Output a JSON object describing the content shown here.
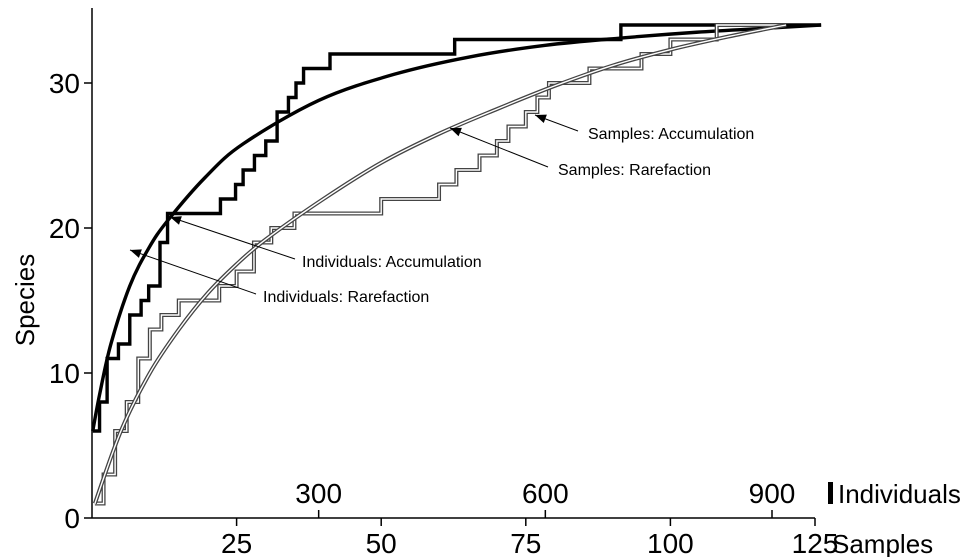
{
  "chart_data": {
    "type": "line",
    "title": "",
    "ylabel": "Species",
    "ylim": [
      0,
      34
    ],
    "yticks": [
      "0",
      "10",
      "20",
      "30"
    ],
    "yticks_values": [
      0,
      10,
      20,
      30
    ],
    "x_bottom": {
      "label": "Samples",
      "lim": [
        0,
        125
      ],
      "ticks": [
        "25",
        "50",
        "75",
        "100",
        "125"
      ],
      "ticks_values": [
        25,
        50,
        75,
        100,
        125
      ]
    },
    "x_top": {
      "label": "Individuals",
      "lim": [
        0,
        1000
      ],
      "ticks": [
        "300",
        "600",
        "900"
      ],
      "ticks_values": [
        300,
        600,
        900
      ]
    },
    "series": [
      {
        "name": "Individuals: Accumulation",
        "axis": "individuals",
        "style": "step-black",
        "x": [
          1,
          10,
          20,
          35,
          50,
          65,
          75,
          90,
          100,
          110,
          150,
          170,
          190,
          200,
          215,
          230,
          245,
          260,
          270,
          280,
          300,
          315,
          325,
          340,
          460,
          480,
          680,
          700,
          965
        ],
        "y": [
          6,
          8,
          11,
          12,
          14,
          15,
          16,
          19,
          21,
          21,
          21,
          22,
          23,
          24,
          25,
          26,
          28,
          29,
          30,
          31,
          31,
          32,
          32,
          32,
          32,
          33,
          33,
          34,
          34
        ]
      },
      {
        "name": "Individuals: Rarefaction",
        "axis": "individuals",
        "style": "smooth-black",
        "x": [
          1,
          10,
          25,
          50,
          75,
          100,
          150,
          200,
          300,
          400,
          500,
          600,
          700,
          800,
          900,
          965
        ],
        "y": [
          6,
          8.5,
          12,
          16,
          18.6,
          20.5,
          23.5,
          25.8,
          28.8,
          30.6,
          31.8,
          32.6,
          33.1,
          33.5,
          33.8,
          34
        ]
      },
      {
        "name": "Samples: Accumulation",
        "axis": "samples",
        "style": "step-double",
        "x": [
          0.5,
          2,
          4,
          6,
          8,
          10,
          12,
          15,
          19,
          22,
          25,
          28,
          31,
          35,
          40,
          45,
          50,
          55,
          60,
          63,
          67,
          70,
          72,
          75,
          77,
          79,
          82,
          86,
          90,
          95,
          100,
          106,
          108,
          110,
          115,
          117,
          120
        ],
        "y": [
          1,
          3,
          6,
          8,
          11,
          13,
          14,
          15,
          15,
          16,
          17,
          19,
          20,
          21,
          21,
          21,
          22,
          22,
          23,
          24,
          25,
          26,
          27,
          28,
          29,
          30,
          30,
          31,
          31,
          32,
          33,
          33,
          34,
          34,
          34,
          34,
          34
        ]
      },
      {
        "name": "Samples: Rarefaction",
        "axis": "samples",
        "style": "smooth-double",
        "x": [
          0.5,
          5,
          10,
          15,
          20,
          25,
          30,
          40,
          50,
          60,
          70,
          80,
          90,
          100,
          110,
          120
        ],
        "y": [
          1,
          6,
          10,
          13,
          15.5,
          17.5,
          19.2,
          22,
          24.5,
          26.5,
          28.2,
          29.8,
          31.2,
          32.3,
          33.2,
          34
        ]
      }
    ],
    "annotations": [
      {
        "text": "Samples: Accumulation"
      },
      {
        "text": "Samples: Rarefaction"
      },
      {
        "text": "Individuals: Accumulation"
      },
      {
        "text": "Individuals: Rarefaction"
      }
    ],
    "grid": false,
    "legend": "none"
  }
}
